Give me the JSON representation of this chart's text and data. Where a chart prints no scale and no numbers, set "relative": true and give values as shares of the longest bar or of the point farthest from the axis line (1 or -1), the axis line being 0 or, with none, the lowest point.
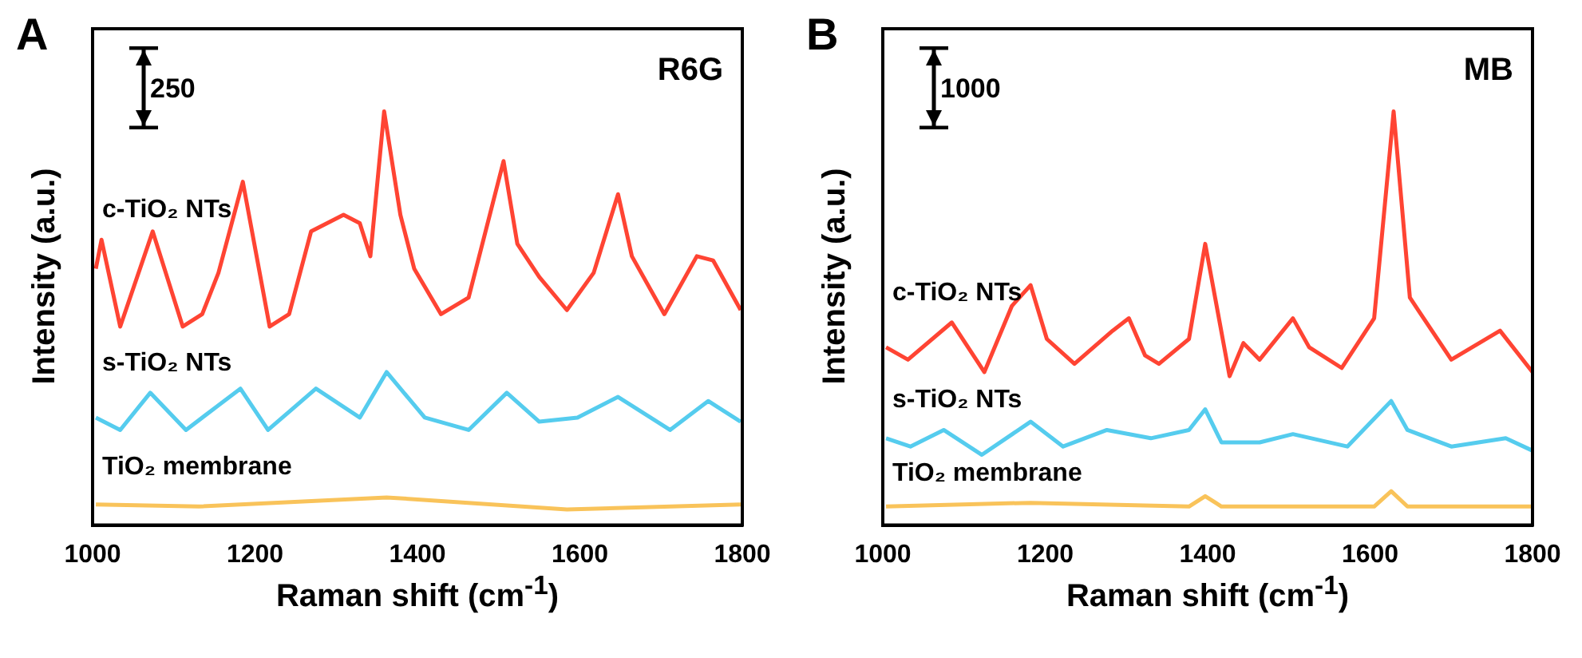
{
  "chart_data": [
    {
      "type": "line",
      "title": "R6G",
      "xlabel": "Raman shift (cm$^{-1}$)",
      "ylabel": "Intensity (a.u.)",
      "annotations": [
        "A",
        "250"
      ],
      "relative": true,
      "xlim": [
        1000,
        1800
      ],
      "xticks": [
        1000,
        1200,
        1400,
        1600,
        1800
      ],
      "grid": false,
      "legend": false,
      "marker": "none",
      "line_style": "solid",
      "series": [
        {
          "name": "c-TiO₂ NTs",
          "color": "#ff4433",
          "x": [
            1004,
            1011,
            1034,
            1074,
            1111,
            1135,
            1155,
            1185,
            1218,
            1242,
            1269,
            1309,
            1329,
            1342,
            1359,
            1379,
            1396,
            1429,
            1463,
            1506,
            1523,
            1550,
            1584,
            1617,
            1647,
            1664,
            1704,
            1744,
            1764,
            1798
          ],
          "values": [
            0.62,
            0.69,
            0.48,
            0.71,
            0.48,
            0.51,
            0.61,
            0.83,
            0.48,
            0.51,
            0.71,
            0.75,
            0.73,
            0.65,
            1,
            0.75,
            0.62,
            0.51,
            0.55,
            0.88,
            0.68,
            0.6,
            0.52,
            0.61,
            0.8,
            0.65,
            0.51,
            0.65,
            0.64,
            0.52
          ]
        },
        {
          "name": "s-TiO₂ NTs",
          "color": "#55ccee",
          "x": [
            1004,
            1034,
            1071,
            1115,
            1182,
            1216,
            1275,
            1329,
            1362,
            1409,
            1463,
            1510,
            1550,
            1597,
            1647,
            1711,
            1758,
            1798
          ],
          "values": [
            0.26,
            0.23,
            0.32,
            0.23,
            0.33,
            0.23,
            0.33,
            0.26,
            0.37,
            0.26,
            0.23,
            0.32,
            0.25,
            0.26,
            0.31,
            0.23,
            0.3,
            0.25
          ]
        },
        {
          "name": "TiO₂ membrane",
          "color": "#f9c35a",
          "x": [
            1004,
            1131,
            1362,
            1584,
            1798
          ],
          "values": [
            0.05,
            0.045,
            0.067,
            0.038,
            0.05
          ]
        }
      ]
    },
    {
      "type": "line",
      "title": "MB",
      "xlabel": "Raman shift (cm$^{-1}$)",
      "ylabel": "Intensity (a.u.)",
      "annotations": [
        "B",
        "1000"
      ],
      "relative": true,
      "xlim": [
        1000,
        1800
      ],
      "xticks": [
        1000,
        1200,
        1400,
        1600,
        1800
      ],
      "grid": false,
      "legend": false,
      "marker": "none",
      "line_style": "solid",
      "series": [
        {
          "name": "c-TiO₂ NTs",
          "color": "#ff4433",
          "x": [
            1004,
            1031,
            1085,
            1125,
            1159,
            1182,
            1202,
            1236,
            1283,
            1303,
            1323,
            1340,
            1377,
            1397,
            1427,
            1444,
            1464,
            1505,
            1525,
            1565,
            1605,
            1629,
            1649,
            1700,
            1760,
            1800
          ],
          "values": [
            0.43,
            0.4,
            0.49,
            0.37,
            0.53,
            0.58,
            0.45,
            0.39,
            0.47,
            0.5,
            0.41,
            0.39,
            0.45,
            0.68,
            0.36,
            0.44,
            0.4,
            0.5,
            0.43,
            0.38,
            0.5,
            1,
            0.55,
            0.4,
            0.47,
            0.37
          ]
        },
        {
          "name": "s-TiO₂ NTs",
          "color": "#55ccee",
          "x": [
            1004,
            1034,
            1075,
            1122,
            1182,
            1222,
            1276,
            1330,
            1377,
            1397,
            1417,
            1464,
            1505,
            1572,
            1626,
            1646,
            1700,
            1767,
            1800
          ],
          "values": [
            0.21,
            0.19,
            0.23,
            0.17,
            0.25,
            0.19,
            0.23,
            0.21,
            0.23,
            0.28,
            0.2,
            0.2,
            0.22,
            0.19,
            0.3,
            0.23,
            0.19,
            0.21,
            0.18
          ]
        },
        {
          "name": "TiO₂ membrane",
          "color": "#f9c35a",
          "x": [
            1004,
            1182,
            1377,
            1397,
            1417,
            1605,
            1626,
            1646,
            1800
          ],
          "values": [
            0.045,
            0.054,
            0.045,
            0.07,
            0.045,
            0.045,
            0.082,
            0.045,
            0.045
          ]
        }
      ]
    }
  ]
}
